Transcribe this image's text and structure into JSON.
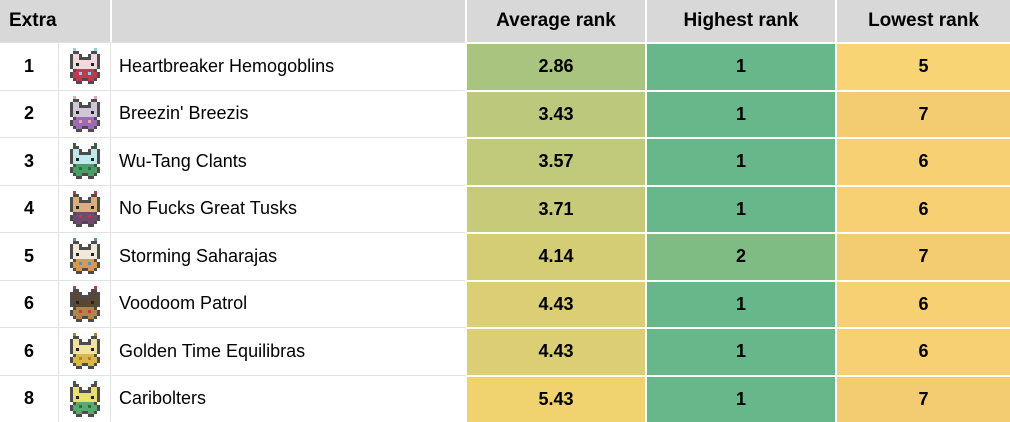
{
  "table": {
    "header": {
      "corner_label": "Extra",
      "columns": [
        "Average rank",
        "Highest rank",
        "Lowest rank"
      ]
    },
    "rows": [
      {
        "rank": "1",
        "team": "Heartbreaker Hemogoblins",
        "icon": {
          "name": "hemogoblin-sprite",
          "colors": [
            "#c0394e",
            "#f0d8dc",
            "#8fd3e5"
          ]
        },
        "average": {
          "value": "2.86",
          "bg": "#a9c47e"
        },
        "highest": {
          "value": "1",
          "bg": "#68b78b"
        },
        "lowest": {
          "value": "5",
          "bg": "#f8d474"
        }
      },
      {
        "rank": "2",
        "team": "Breezin' Breezis",
        "icon": {
          "name": "breezi-sprite",
          "colors": [
            "#9b6bb3",
            "#cfc6d8",
            "#f0a0b4"
          ]
        },
        "average": {
          "value": "3.43",
          "bg": "#bcc87b"
        },
        "highest": {
          "value": "1",
          "bg": "#68b78b"
        },
        "lowest": {
          "value": "7",
          "bg": "#f3cb70"
        }
      },
      {
        "rank": "3",
        "team": "Wu-Tang Clants",
        "icon": {
          "name": "clant-sprite",
          "colors": [
            "#4a9e63",
            "#bfe8ea",
            "#2e6b45"
          ]
        },
        "average": {
          "value": "3.57",
          "bg": "#c1c97a"
        },
        "highest": {
          "value": "1",
          "bg": "#68b78b"
        },
        "lowest": {
          "value": "6",
          "bg": "#f6d073"
        }
      },
      {
        "rank": "4",
        "team": "No Fucks Great Tusks",
        "icon": {
          "name": "great-tusk-sprite",
          "colors": [
            "#6e4a70",
            "#d9b07a",
            "#c23a4a"
          ]
        },
        "average": {
          "value": "3.71",
          "bg": "#c6ca79"
        },
        "highest": {
          "value": "1",
          "bg": "#68b78b"
        },
        "lowest": {
          "value": "6",
          "bg": "#f6d073"
        }
      },
      {
        "rank": "5",
        "team": "Storming Saharajas",
        "icon": {
          "name": "saharaja-sprite",
          "colors": [
            "#d99a4e",
            "#f0e8d8",
            "#5b8fc0"
          ]
        },
        "average": {
          "value": "4.14",
          "bg": "#d4cd76"
        },
        "highest": {
          "value": "2",
          "bg": "#7fbc83"
        },
        "lowest": {
          "value": "7",
          "bg": "#f3cb70"
        }
      },
      {
        "rank": "6",
        "team": "Voodoom Patrol",
        "icon": {
          "name": "voodoom-sprite",
          "colors": [
            "#b08648",
            "#5a4632",
            "#c23a4a"
          ]
        },
        "average": {
          "value": "4.43",
          "bg": "#dbce74"
        },
        "highest": {
          "value": "1",
          "bg": "#68b78b"
        },
        "lowest": {
          "value": "6",
          "bg": "#f6d073"
        }
      },
      {
        "rank": "6",
        "team": "Golden Time Equilibras",
        "icon": {
          "name": "equilibra-sprite",
          "colors": [
            "#d9b84a",
            "#f0e3a0",
            "#b97f2e"
          ]
        },
        "average": {
          "value": "4.43",
          "bg": "#dbce74"
        },
        "highest": {
          "value": "1",
          "bg": "#68b78b"
        },
        "lowest": {
          "value": "6",
          "bg": "#f6d073"
        }
      },
      {
        "rank": "8",
        "team": "Caribolters",
        "icon": {
          "name": "caribolt-sprite",
          "colors": [
            "#5aa86b",
            "#e8e06a",
            "#2e6b4a"
          ]
        },
        "average": {
          "value": "5.43",
          "bg": "#f0d26e"
        },
        "highest": {
          "value": "1",
          "bg": "#68b78b"
        },
        "lowest": {
          "value": "7",
          "bg": "#f3cb70"
        }
      }
    ]
  },
  "colors": {
    "header_bg": "#d8d8d8",
    "grid_line": "#e2e2e2",
    "cell_divider": "#ffffff",
    "row_bg": "#ffffff",
    "text": "#000000",
    "sprite_outline": "#4c4c4c"
  }
}
